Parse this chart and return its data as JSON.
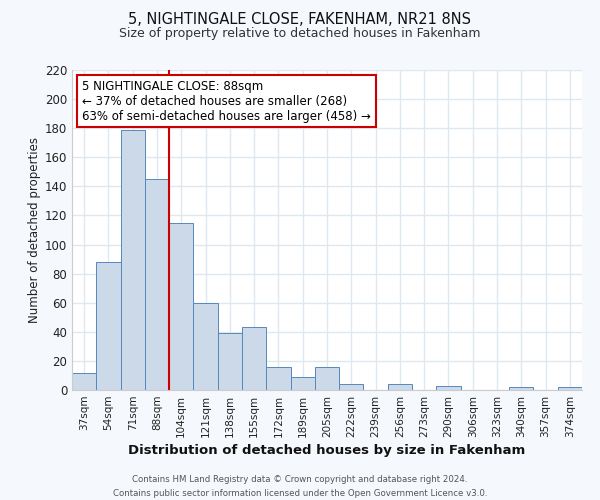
{
  "title": "5, NIGHTINGALE CLOSE, FAKENHAM, NR21 8NS",
  "subtitle": "Size of property relative to detached houses in Fakenham",
  "xlabel": "Distribution of detached houses by size in Fakenham",
  "ylabel": "Number of detached properties",
  "bar_color": "#ccd9e8",
  "bar_edge_color": "#5588bb",
  "categories": [
    "37sqm",
    "54sqm",
    "71sqm",
    "88sqm",
    "104sqm",
    "121sqm",
    "138sqm",
    "155sqm",
    "172sqm",
    "189sqm",
    "205sqm",
    "222sqm",
    "239sqm",
    "256sqm",
    "273sqm",
    "290sqm",
    "306sqm",
    "323sqm",
    "340sqm",
    "357sqm",
    "374sqm"
  ],
  "values": [
    12,
    88,
    179,
    145,
    115,
    60,
    39,
    43,
    16,
    9,
    16,
    4,
    0,
    4,
    0,
    3,
    0,
    0,
    2,
    0,
    2
  ],
  "ylim": [
    0,
    220
  ],
  "yticks": [
    0,
    20,
    40,
    60,
    80,
    100,
    120,
    140,
    160,
    180,
    200,
    220
  ],
  "vline_color": "#cc0000",
  "annotation_title": "5 NIGHTINGALE CLOSE: 88sqm",
  "annotation_line1": "← 37% of detached houses are smaller (268)",
  "annotation_line2": "63% of semi-detached houses are larger (458) →",
  "annotation_box_color": "#ffffff",
  "annotation_box_edge": "#cc0000",
  "footer1": "Contains HM Land Registry data © Crown copyright and database right 2024.",
  "footer2": "Contains public sector information licensed under the Open Government Licence v3.0.",
  "fig_bg_color": "#f5f8fc",
  "plot_bg_color": "#ffffff",
  "grid_color": "#dde8f0"
}
